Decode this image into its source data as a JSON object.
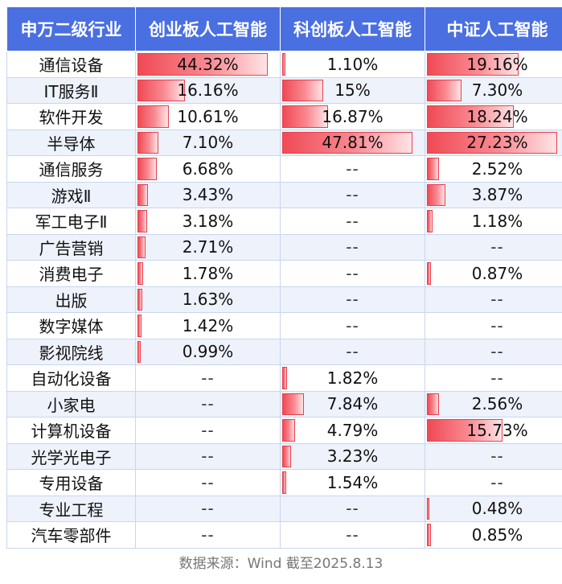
{
  "table": {
    "headers": [
      "申万二级行业",
      "创业板人工智能",
      "科创板人工智能",
      "中证人工智能"
    ],
    "column_max": [
      44.32,
      47.81,
      27.23
    ],
    "rows": [
      {
        "name": "通信设备",
        "values": [
          "44.32%",
          "1.10%",
          "19.16%"
        ]
      },
      {
        "name": "IT服务Ⅱ",
        "values": [
          "16.16%",
          "15%",
          "7.30%"
        ]
      },
      {
        "name": "软件开发",
        "values": [
          "10.61%",
          "16.87%",
          "18.24%"
        ]
      },
      {
        "name": "半导体",
        "values": [
          "7.10%",
          "47.81%",
          "27.23%"
        ]
      },
      {
        "name": "通信服务",
        "values": [
          "6.68%",
          "--",
          "2.52%"
        ]
      },
      {
        "name": "游戏Ⅱ",
        "values": [
          "3.43%",
          "--",
          "3.87%"
        ]
      },
      {
        "name": "军工电子Ⅱ",
        "values": [
          "3.18%",
          "--",
          "1.18%"
        ]
      },
      {
        "name": "广告营销",
        "values": [
          "2.71%",
          "--",
          "--"
        ]
      },
      {
        "name": "消费电子",
        "values": [
          "1.78%",
          "--",
          "0.87%"
        ]
      },
      {
        "name": "出版",
        "values": [
          "1.63%",
          "--",
          "--"
        ]
      },
      {
        "name": "数字媒体",
        "values": [
          "1.42%",
          "--",
          "--"
        ]
      },
      {
        "name": "影视院线",
        "values": [
          "0.99%",
          "--",
          "--"
        ]
      },
      {
        "name": "自动化设备",
        "values": [
          "--",
          "1.82%",
          "--"
        ]
      },
      {
        "name": "小家电",
        "values": [
          "--",
          "7.84%",
          "2.56%"
        ]
      },
      {
        "name": "计算机设备",
        "values": [
          "--",
          "4.79%",
          "15.73%"
        ]
      },
      {
        "name": "光学光电子",
        "values": [
          "--",
          "3.23%",
          "--"
        ]
      },
      {
        "name": "专用设备",
        "values": [
          "--",
          "1.54%",
          "--"
        ]
      },
      {
        "name": "专业工程",
        "values": [
          "--",
          "--",
          "0.48%"
        ]
      },
      {
        "name": "汽车零部件",
        "values": [
          "--",
          "--",
          "0.85%"
        ]
      }
    ]
  },
  "source": "数据来源：Wind 截至2025.8.13",
  "colors": {
    "header_bg": "#4a6fe0",
    "bar": "#f04a55",
    "row_alt": "#eef2fb"
  }
}
